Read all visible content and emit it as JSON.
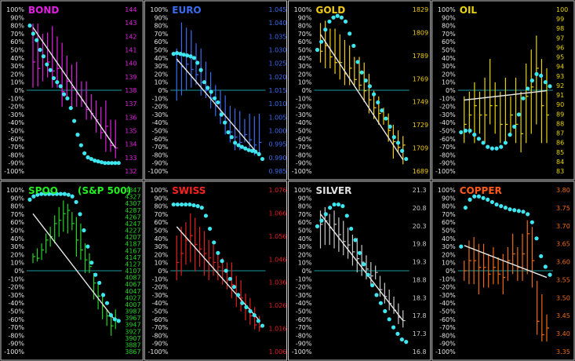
{
  "colors": {
    "background": "#000000",
    "border": "#c8c8c8",
    "zero_line": "#1a9aa0",
    "dots": "#3ee6f0",
    "trend": "#e6e6e6",
    "left_ticks": "#e6e6e6"
  },
  "chart_data": [
    {
      "type": "bar",
      "title": "BOND",
      "color": "#e020e0",
      "left_ticks": [
        "100%",
        "90%",
        "80%",
        "70%",
        "60%",
        "50%",
        "40%",
        "30%",
        "20%",
        "10%",
        "0%",
        "-10%",
        "-20%",
        "-30%",
        "-40%",
        "-50%",
        "-60%",
        "-70%",
        "-80%",
        "-90%",
        "-100%"
      ],
      "right_ticks": [
        "144",
        "143",
        "142",
        "141",
        "140",
        "139",
        "138",
        "137",
        "136",
        "135",
        "134",
        "133",
        "132"
      ],
      "ylim": [
        132,
        144.6
      ],
      "bars": [
        [
          138.5,
          143.5,
          140.5
        ],
        [
          138.6,
          143.5,
          140.0
        ],
        [
          139.0,
          142.7,
          141.0
        ],
        [
          139.3,
          142.8,
          140.5
        ],
        [
          138.5,
          143.3,
          139.8
        ],
        [
          138.5,
          142.5,
          140.0
        ],
        [
          137.0,
          142.0,
          138.2
        ],
        [
          137.5,
          141.0,
          139.0
        ],
        [
          137.0,
          140.3,
          138.5
        ],
        [
          137.0,
          140.5,
          138.0
        ],
        [
          137.0,
          139.0,
          137.5
        ],
        [
          136.0,
          139.0,
          136.8
        ],
        [
          136.0,
          138.0,
          136.5
        ],
        [
          135.0,
          137.5,
          136.0
        ],
        [
          134.5,
          137.0,
          135.0
        ],
        [
          133.5,
          137.5,
          135.5
        ],
        [
          133.5,
          136.0,
          134.0
        ],
        [
          133.0,
          136.0,
          133.8
        ]
      ],
      "trend": [
        143.2,
        133.8
      ],
      "dots": [
        80,
        70,
        62,
        50,
        42,
        32,
        25,
        15,
        10,
        5,
        -5,
        -10,
        -22,
        -38,
        -55,
        -68,
        -78,
        -83,
        -85,
        -87,
        -88,
        -89,
        -90,
        -90,
        -90,
        -90,
        -90
      ]
    },
    {
      "type": "bar",
      "title": "EURO",
      "color": "#3b6cf0",
      "left_ticks": [
        "100%",
        "90%",
        "80%",
        "70%",
        "60%",
        "50%",
        "40%",
        "30%",
        "20%",
        "10%",
        "0%",
        "-10%",
        "-20%",
        "-30%",
        "-40%",
        "-50%",
        "-60%",
        "-70%",
        "-80%",
        "-90%",
        "-100%"
      ],
      "right_ticks": [
        "1.045",
        "1.040",
        "1.035",
        "1.030",
        "1.025",
        "1.020",
        "1.015",
        "1.010",
        "1.005",
        "1.000",
        "0.995",
        "0.990",
        "0.985"
      ],
      "ylim": [
        0.985,
        1.047
      ],
      "bars": [
        [
          1.012,
          1.032,
          1.027
        ],
        [
          1.014,
          1.042,
          1.025
        ],
        [
          1.016,
          1.04,
          1.026
        ],
        [
          1.017,
          1.039,
          1.024
        ],
        [
          1.018,
          1.034,
          1.022
        ],
        [
          1.014,
          1.032,
          1.019
        ],
        [
          1.013,
          1.027,
          1.016
        ],
        [
          1.009,
          1.023,
          1.013
        ],
        [
          1.006,
          1.018,
          1.01
        ],
        [
          1.003,
          1.016,
          1.006
        ],
        [
          0.999,
          1.014,
          1.004
        ],
        [
          0.996,
          1.01,
          1.0
        ],
        [
          0.993,
          1.009,
          0.998
        ],
        [
          0.993,
          1.008,
          0.996
        ],
        [
          0.996,
          1.005,
          0.999
        ],
        [
          0.994,
          1.007,
          0.997
        ],
        [
          0.991,
          1.006,
          0.995
        ],
        [
          0.991,
          1.007,
          0.996
        ]
      ],
      "trend": [
        1.028,
        0.991
      ],
      "dots": [
        45,
        46,
        45,
        44,
        43,
        42,
        40,
        34,
        25,
        10,
        3,
        -2,
        -10,
        -15,
        -30,
        -40,
        -52,
        -58,
        -65,
        -68,
        -70,
        -72,
        -74,
        -75,
        -76,
        -79,
        -85
      ]
    },
    {
      "type": "bar",
      "title": "GOLD",
      "color": "#f2cc18",
      "left_ticks": [
        "100%",
        "90%",
        "80%",
        "70%",
        "60%",
        "50%",
        "40%",
        "30%",
        "20%",
        "10%",
        "0%",
        "-10%",
        "-20%",
        "-30%",
        "-40%",
        "-50%",
        "-60%",
        "-70%",
        "-80%",
        "-90%",
        "-100%"
      ],
      "right_ticks": [
        "1829",
        "1809",
        "1789",
        "1769",
        "1749",
        "1729",
        "1709",
        "1689"
      ],
      "ylim": [
        1689,
        1832
      ],
      "bars": [
        [
          1785,
          1820,
          1795
        ],
        [
          1780,
          1822,
          1800
        ],
        [
          1780,
          1815,
          1790
        ],
        [
          1775,
          1815,
          1785
        ],
        [
          1770,
          1810,
          1785
        ],
        [
          1765,
          1805,
          1775
        ],
        [
          1765,
          1800,
          1780
        ],
        [
          1765,
          1790,
          1770
        ],
        [
          1760,
          1790,
          1765
        ],
        [
          1750,
          1785,
          1760
        ],
        [
          1740,
          1775,
          1752
        ],
        [
          1735,
          1760,
          1745
        ],
        [
          1730,
          1755,
          1740
        ],
        [
          1730,
          1745,
          1735
        ],
        [
          1715,
          1740,
          1725
        ],
        [
          1700,
          1730,
          1715
        ],
        [
          1705,
          1725,
          1710
        ],
        [
          1695,
          1720,
          1712
        ]
      ],
      "trend": [
        1810,
        1699
      ],
      "dots": [
        50,
        60,
        75,
        85,
        90,
        92,
        90,
        85,
        70,
        55,
        35,
        22,
        12,
        5,
        -5,
        -15,
        -25,
        -35,
        -45,
        -58,
        -65,
        -75,
        -85
      ]
    },
    {
      "type": "bar",
      "title": "OIL",
      "color": "#e8d400",
      "left_ticks": [
        "100%",
        "90%",
        "80%",
        "70%",
        "60%",
        "50%",
        "40%",
        "30%",
        "20%",
        "10%",
        "0%",
        "-10%",
        "-20%",
        "-30%",
        "-40%",
        "-50%",
        "-60%",
        "-70%",
        "-80%",
        "-90%",
        "-100%"
      ],
      "right_ticks": [
        "100",
        "99",
        "98",
        "97",
        "96",
        "95",
        "94",
        "93",
        "92",
        "91",
        "90",
        "89",
        "88",
        "87",
        "86",
        "85",
        "84",
        "83"
      ],
      "ylim": [
        83,
        100.3
      ],
      "bars": [
        [
          86,
          91,
          88
        ],
        [
          87,
          91.5,
          89
        ],
        [
          86,
          92.5,
          90
        ],
        [
          87,
          91.5,
          89
        ],
        [
          86,
          93,
          89
        ],
        [
          88,
          95,
          90
        ],
        [
          87,
          92.5,
          90
        ],
        [
          86,
          91.5,
          88
        ],
        [
          86,
          93,
          88
        ],
        [
          87,
          91,
          89
        ],
        [
          86,
          93,
          88
        ],
        [
          85,
          91.5,
          87
        ],
        [
          86,
          94.5,
          91
        ],
        [
          87,
          96,
          92
        ],
        [
          88,
          97.5,
          94
        ],
        [
          86,
          95,
          90
        ],
        [
          86,
          94,
          89
        ]
      ],
      "trend": [
        90.6,
        91.6
      ],
      "dots": [
        -52,
        -50,
        -50,
        -55,
        -60,
        -65,
        -70,
        -72,
        -72,
        -70,
        -65,
        -55,
        -45,
        -30,
        -10,
        2,
        12,
        20,
        18,
        10,
        5
      ]
    },
    {
      "type": "bar",
      "title": "SPOO",
      "subtitle": "(S&P 500)",
      "color": "#22d422",
      "title_color": "#22ee22",
      "left_ticks": [
        "100%",
        "90%",
        "80%",
        "70%",
        "60%",
        "50%",
        "40%",
        "30%",
        "20%",
        "10%",
        "0%",
        "-10%",
        "-20%",
        "-30%",
        "-40%",
        "-50%",
        "-60%",
        "-70%",
        "-80%",
        "-90%",
        "-100%"
      ],
      "right_ticks": [
        "4347",
        "4327",
        "4307",
        "4287",
        "4267",
        "4247",
        "4227",
        "4207",
        "4187",
        "4167",
        "4147",
        "4127",
        "4107",
        "4087",
        "4067",
        "4047",
        "4027",
        "4007",
        "3987",
        "3967",
        "3947",
        "3927",
        "3907",
        "3887",
        "3867"
      ],
      "ylim": [
        3862,
        4352
      ],
      "bars": [
        [
          4130,
          4160,
          4150
        ],
        [
          4135,
          4175,
          4145
        ],
        [
          4140,
          4190,
          4170
        ],
        [
          4160,
          4220,
          4200
        ],
        [
          4180,
          4240,
          4210
        ],
        [
          4190,
          4275,
          4250
        ],
        [
          4210,
          4300,
          4260
        ],
        [
          4225,
          4320,
          4280
        ],
        [
          4220,
          4310,
          4290
        ],
        [
          4230,
          4285,
          4250
        ],
        [
          4150,
          4270,
          4200
        ],
        [
          4140,
          4250,
          4170
        ],
        [
          4100,
          4190,
          4140
        ],
        [
          4100,
          4160,
          4120
        ],
        [
          4020,
          4100,
          4070
        ],
        [
          3990,
          4070,
          4030
        ],
        [
          3960,
          4040,
          4000
        ],
        [
          3940,
          3990,
          3970
        ],
        [
          3910,
          3980,
          3940
        ],
        [
          3930,
          3990,
          3960
        ]
      ],
      "trend": [
        4280,
        3955
      ],
      "dots": [
        88,
        92,
        94,
        95,
        95,
        95,
        95,
        95,
        95,
        95,
        94,
        92,
        85,
        70,
        50,
        30,
        10,
        -5,
        -15,
        -30,
        -40,
        -55,
        -60,
        -62
      ]
    },
    {
      "type": "bar",
      "title": "SWISS",
      "color": "#e02020",
      "title_color": "#ff2020",
      "left_ticks": [
        "100%",
        "90%",
        "80%",
        "70%",
        "60%",
        "50%",
        "40%",
        "30%",
        "20%",
        "10%",
        "0%",
        "-10%",
        "-20%",
        "-30%",
        "-40%",
        "-50%",
        "-60%",
        "-70%",
        "-80%",
        "-90%",
        "-100%"
      ],
      "right_ticks": [
        "1.076",
        "1.066",
        "1.056",
        "1.046",
        "1.036",
        "1.026",
        "1.016",
        "1.006"
      ],
      "ylim": [
        1.006,
        1.0785
      ],
      "bars": [
        [
          1.038,
          1.058,
          1.046
        ],
        [
          1.04,
          1.062,
          1.05
        ],
        [
          1.045,
          1.064,
          1.056
        ],
        [
          1.046,
          1.068,
          1.058
        ],
        [
          1.042,
          1.066,
          1.054
        ],
        [
          1.044,
          1.062,
          1.052
        ],
        [
          1.04,
          1.06,
          1.05
        ],
        [
          1.038,
          1.056,
          1.048
        ],
        [
          1.04,
          1.054,
          1.046
        ],
        [
          1.038,
          1.05,
          1.044
        ],
        [
          1.036,
          1.048,
          1.042
        ],
        [
          1.034,
          1.046,
          1.038
        ],
        [
          1.03,
          1.046,
          1.036
        ],
        [
          1.026,
          1.04,
          1.032
        ],
        [
          1.024,
          1.038,
          1.03
        ],
        [
          1.02,
          1.032,
          1.026
        ],
        [
          1.018,
          1.03,
          1.022
        ],
        [
          1.016,
          1.026,
          1.018
        ],
        [
          1.015,
          1.022,
          1.017
        ]
      ],
      "trend": [
        1.062,
        1.02
      ],
      "dots": [
        82,
        82,
        82,
        82,
        82,
        81,
        80,
        78,
        68,
        52,
        35,
        22,
        12,
        0,
        -10,
        -20,
        -30,
        -40,
        -45,
        -50,
        -55,
        -62,
        -68
      ]
    },
    {
      "type": "bar",
      "title": "SILVER",
      "color": "#c8c8c8",
      "title_color": "#e0e0e0",
      "left_ticks": [
        "100%",
        "90%",
        "80%",
        "70%",
        "60%",
        "50%",
        "40%",
        "30%",
        "20%",
        "10%",
        "0%",
        "-10%",
        "-20%",
        "-30%",
        "-40%",
        "-50%",
        "-60%",
        "-70%",
        "-80%",
        "-90%",
        "-100%"
      ],
      "right_ticks": [
        "21.3",
        "20.8",
        "20.3",
        "19.8",
        "19.3",
        "18.8",
        "18.3",
        "17.8",
        "17.3",
        "16.8"
      ],
      "ylim": [
        16.8,
        21.5
      ],
      "bars": [
        [
          19.8,
          20.9,
          20.5
        ],
        [
          19.9,
          21.0,
          20.6
        ],
        [
          19.9,
          20.8,
          20.4
        ],
        [
          19.8,
          20.9,
          20.5
        ],
        [
          19.7,
          20.7,
          20.2
        ],
        [
          19.6,
          20.6,
          20.0
        ],
        [
          19.5,
          20.4,
          19.9
        ],
        [
          19.3,
          20.2,
          19.7
        ],
        [
          19.1,
          20.1,
          19.5
        ],
        [
          19.0,
          19.9,
          19.4
        ],
        [
          18.9,
          19.6,
          19.2
        ],
        [
          18.7,
          19.4,
          19.0
        ],
        [
          18.9,
          19.3,
          19.1
        ],
        [
          18.4,
          19.0,
          18.6
        ],
        [
          18.2,
          18.8,
          18.4
        ],
        [
          18.0,
          18.6,
          18.2
        ],
        [
          17.9,
          18.4,
          18.0
        ],
        [
          17.6,
          18.2,
          17.8
        ],
        [
          17.5,
          18.0,
          17.7
        ]
      ],
      "trend": [
        20.8,
        17.7
      ],
      "dots": [
        55,
        62,
        70,
        78,
        82,
        82,
        80,
        68,
        52,
        38,
        22,
        8,
        -5,
        -18,
        -30,
        -40,
        -50,
        -60,
        -70,
        -78,
        -85,
        -88
      ]
    },
    {
      "type": "bar",
      "title": "COPPER",
      "color": "#f06a10",
      "title_color": "#ff5a1a",
      "left_ticks": [
        "100%",
        "90%",
        "80%",
        "70%",
        "60%",
        "50%",
        "40%",
        "30%",
        "20%",
        "10%",
        "0%",
        "-10%",
        "-20%",
        "-30%",
        "-40%",
        "-50%",
        "-60%",
        "-70%",
        "-80%",
        "-90%",
        "-100%"
      ],
      "right_ticks": [
        "3.80",
        "3.75",
        "3.70",
        "3.65",
        "3.60",
        "3.55",
        "3.50",
        "3.45",
        "3.40",
        "3.35"
      ],
      "ylim": [
        3.35,
        3.83
      ],
      "bars": [
        [
          3.56,
          3.62,
          3.59
        ],
        [
          3.55,
          3.68,
          3.62
        ],
        [
          3.55,
          3.69,
          3.62
        ],
        [
          3.52,
          3.67,
          3.6
        ],
        [
          3.54,
          3.67,
          3.6
        ],
        [
          3.54,
          3.64,
          3.58
        ],
        [
          3.55,
          3.66,
          3.6
        ],
        [
          3.55,
          3.63,
          3.58
        ],
        [
          3.52,
          3.64,
          3.57
        ],
        [
          3.56,
          3.66,
          3.62
        ],
        [
          3.58,
          3.7,
          3.64
        ],
        [
          3.56,
          3.66,
          3.6
        ],
        [
          3.56,
          3.7,
          3.64
        ],
        [
          3.58,
          3.74,
          3.7
        ],
        [
          3.54,
          3.72,
          3.62
        ],
        [
          3.4,
          3.56,
          3.44
        ],
        [
          3.38,
          3.52,
          3.4
        ],
        [
          3.38,
          3.46,
          3.42
        ]
      ],
      "trend": [
        3.665,
        3.57
      ],
      "dots": [
        30,
        78,
        88,
        92,
        92,
        90,
        88,
        85,
        82,
        80,
        78,
        76,
        75,
        74,
        73,
        70,
        60,
        40,
        18,
        5,
        -5
      ]
    }
  ]
}
